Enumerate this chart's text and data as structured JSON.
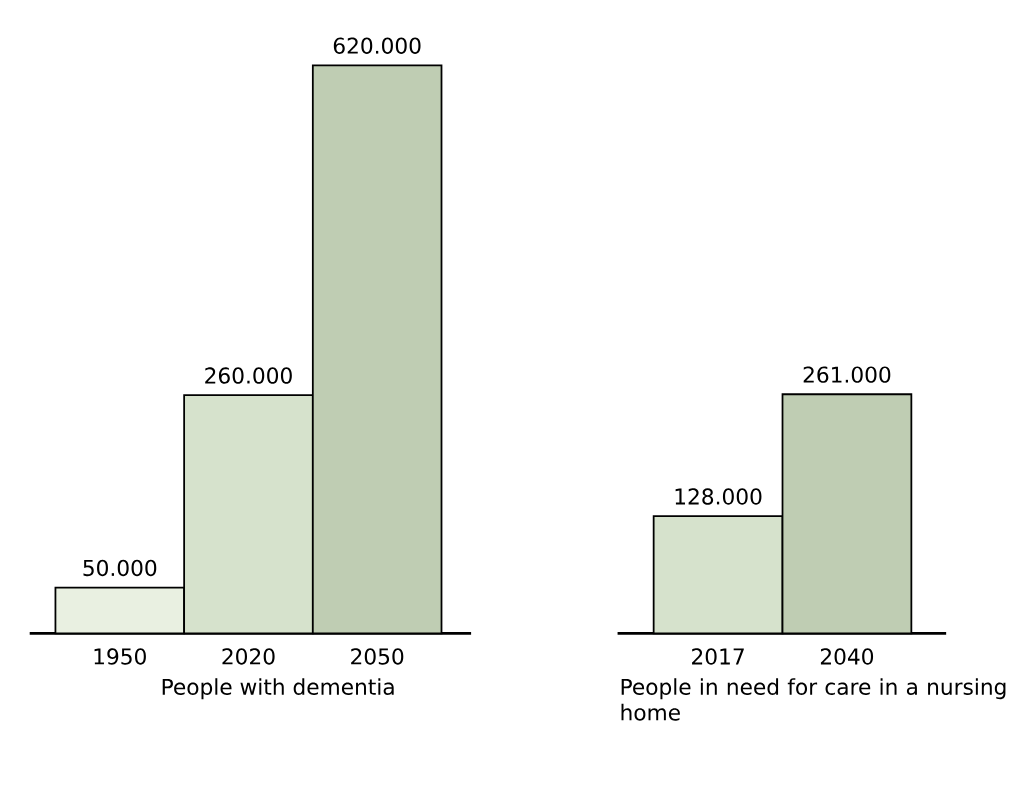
{
  "chart_data": [
    {
      "type": "bar",
      "xlabel": "People with dementia",
      "categories": [
        "1950",
        "2020",
        "2050"
      ],
      "values": [
        50000,
        260000,
        620000
      ],
      "colors": [
        "#e9f0e1",
        "#d6e2cc",
        "#bfcdb3"
      ],
      "value_labels": [
        "50.000",
        "260.000",
        "620.000"
      ]
    },
    {
      "type": "bar",
      "xlabel": "People in need for care in a nursing home",
      "categories": [
        "2017",
        "2040"
      ],
      "values": [
        128000,
        261000
      ],
      "colors": [
        "#d6e2cc",
        "#bfcdb3"
      ],
      "value_labels": [
        "128.000",
        "261.000"
      ]
    }
  ]
}
